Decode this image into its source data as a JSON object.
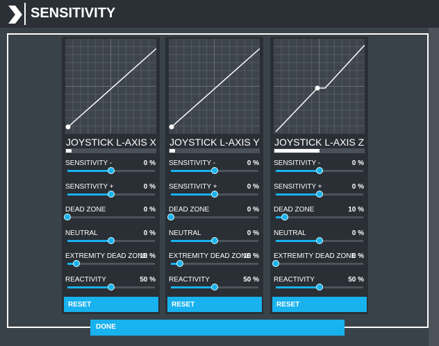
{
  "header": {
    "title": "SENSITIVITY"
  },
  "panels": [
    {
      "name": "JOYSTICK L-AXIS X",
      "reset": "RESET",
      "settings": [
        {
          "label": "SENSITIVITY -",
          "value": "0 %"
        },
        {
          "label": "SENSITIVITY +",
          "value": "0 %"
        },
        {
          "label": "DEAD ZONE",
          "value": "0 %"
        },
        {
          "label": "NEUTRAL",
          "value": "0 %"
        },
        {
          "label": "EXTREMITY DEAD ZONE",
          "value": "10 %"
        },
        {
          "label": "REACTIVITY",
          "value": "50 %"
        }
      ]
    },
    {
      "name": "JOYSTICK L-AXIS Y",
      "reset": "RESET",
      "settings": [
        {
          "label": "SENSITIVITY -",
          "value": "0 %"
        },
        {
          "label": "SENSITIVITY +",
          "value": "0 %"
        },
        {
          "label": "DEAD ZONE",
          "value": "0 %"
        },
        {
          "label": "NEUTRAL",
          "value": "0 %"
        },
        {
          "label": "EXTREMITY DEAD ZONE",
          "value": "10 %"
        },
        {
          "label": "REACTIVITY",
          "value": "50 %"
        }
      ]
    },
    {
      "name": "JOYSTICK L-AXIS Z",
      "reset": "RESET",
      "settings": [
        {
          "label": "SENSITIVITY -",
          "value": "0 %"
        },
        {
          "label": "SENSITIVITY +",
          "value": "0 %"
        },
        {
          "label": "DEAD ZONE",
          "value": "10 %"
        },
        {
          "label": "NEUTRAL",
          "value": "0 %"
        },
        {
          "label": "EXTREMITY DEAD ZONE",
          "value": "0 %"
        },
        {
          "label": "REACTIVITY",
          "value": "50 %"
        }
      ]
    }
  ],
  "footer": {
    "done": "DONE"
  }
}
